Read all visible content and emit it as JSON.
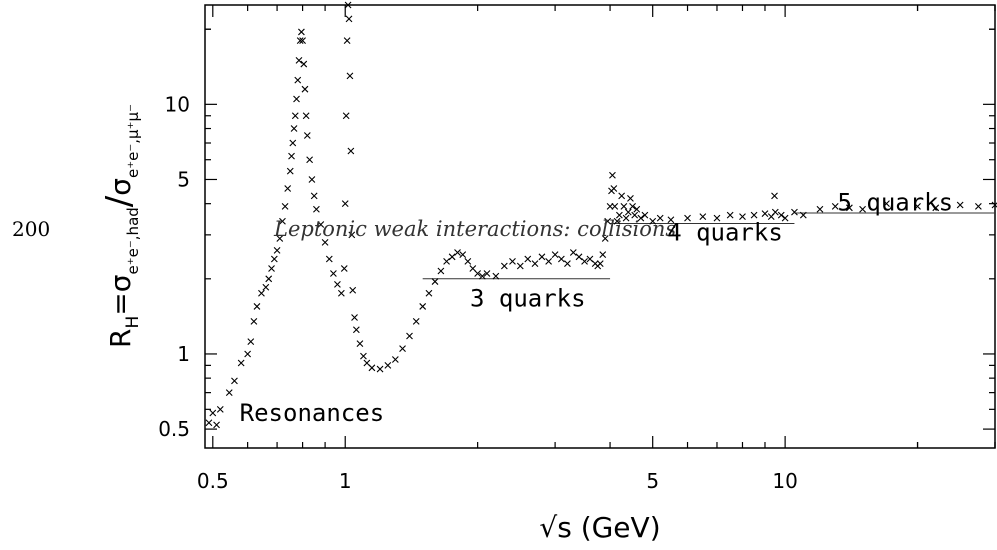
{
  "page_number": "200",
  "chart_data": {
    "type": "scatter",
    "title": "",
    "xlabel": "√s (GeV)",
    "ylabel": "R_H=σ e+e-,had / σ e+e-,μ+μ-",
    "ylabel_parts": {
      "main": "R",
      "sub": "H",
      "eq": "=",
      "sigma": "σ",
      "num_sub": "e⁺e⁻,had",
      "slash": "/",
      "den_sub": "e⁺e⁻,μ⁺μ⁻"
    },
    "x_scale": "log",
    "y_scale": "log",
    "xlim": [
      0.48,
      30
    ],
    "ylim": [
      0.42,
      25
    ],
    "x_ticks": [
      {
        "value": 0.5,
        "label": "0.5"
      },
      {
        "value": 1,
        "label": "1"
      },
      {
        "value": 5,
        "label": "5"
      },
      {
        "value": 10,
        "label": "10"
      }
    ],
    "y_ticks": [
      {
        "value": 0.5,
        "label": "0.5"
      },
      {
        "value": 1,
        "label": "1"
      },
      {
        "value": 5,
        "label": "5"
      },
      {
        "value": 10,
        "label": "10"
      }
    ],
    "grid": false,
    "marker": "×",
    "annotations": [
      {
        "text": "Resonances",
        "x": 0.84,
        "y": 0.54
      },
      {
        "text": "3 quarks",
        "x": 2.6,
        "y": 1.55
      },
      {
        "text": "4 quarks",
        "x": 7.3,
        "y": 2.85
      },
      {
        "text": "5 quarks",
        "x": 17.8,
        "y": 3.75
      }
    ],
    "overlay_text": "Leptonic weak interactions: collisions",
    "reference_lines": [
      {
        "name": "3 quarks",
        "value": 2.0,
        "x_range": [
          1.5,
          4.0
        ]
      },
      {
        "name": "4 quarks",
        "value": 3.33,
        "x_range": [
          4.0,
          10.5
        ]
      },
      {
        "name": "5 quarks",
        "value": 3.67,
        "x_range": [
          10.5,
          30
        ]
      }
    ],
    "series": [
      {
        "values": [
          [
            0.49,
            0.53
          ],
          [
            0.5,
            0.58
          ],
          [
            0.51,
            0.52
          ],
          [
            0.52,
            0.6
          ],
          [
            0.545,
            0.7
          ],
          [
            0.56,
            0.78
          ],
          [
            0.58,
            0.92
          ],
          [
            0.6,
            1.0
          ],
          [
            0.61,
            1.12
          ],
          [
            0.62,
            1.35
          ],
          [
            0.63,
            1.55
          ],
          [
            0.645,
            1.75
          ],
          [
            0.66,
            1.85
          ],
          [
            0.67,
            2.0
          ],
          [
            0.68,
            2.2
          ],
          [
            0.69,
            2.4
          ],
          [
            0.7,
            2.6
          ],
          [
            0.71,
            2.9
          ],
          [
            0.72,
            3.4
          ],
          [
            0.73,
            3.9
          ],
          [
            0.74,
            4.6
          ],
          [
            0.75,
            5.4
          ],
          [
            0.755,
            6.2
          ],
          [
            0.76,
            7.0
          ],
          [
            0.765,
            8.0
          ],
          [
            0.77,
            9.0
          ],
          [
            0.775,
            10.5
          ],
          [
            0.78,
            12.5
          ],
          [
            0.785,
            15.0
          ],
          [
            0.79,
            18.0
          ],
          [
            0.795,
            19.5
          ],
          [
            0.8,
            18.0
          ],
          [
            0.805,
            14.5
          ],
          [
            0.81,
            11.5
          ],
          [
            0.815,
            9.0
          ],
          [
            0.82,
            7.5
          ],
          [
            0.83,
            6.0
          ],
          [
            0.84,
            5.0
          ],
          [
            0.85,
            4.3
          ],
          [
            0.86,
            3.8
          ],
          [
            0.88,
            3.3
          ],
          [
            0.9,
            2.8
          ],
          [
            0.92,
            2.4
          ],
          [
            0.94,
            2.1
          ],
          [
            0.96,
            1.9
          ],
          [
            0.98,
            1.75
          ],
          [
            0.995,
            2.2
          ],
          [
            1.0,
            4.0
          ],
          [
            1.005,
            9.0
          ],
          [
            1.01,
            18.0
          ],
          [
            1.015,
            26.0
          ],
          [
            1.02,
            22.0
          ],
          [
            1.025,
            13.0
          ],
          [
            1.03,
            6.5
          ],
          [
            1.035,
            3.0
          ],
          [
            1.04,
            1.8
          ],
          [
            1.05,
            1.4
          ],
          [
            1.06,
            1.25
          ],
          [
            1.08,
            1.1
          ],
          [
            1.1,
            0.98
          ],
          [
            1.12,
            0.92
          ],
          [
            1.15,
            0.88
          ],
          [
            1.2,
            0.87
          ],
          [
            1.25,
            0.9
          ],
          [
            1.3,
            0.95
          ],
          [
            1.35,
            1.05
          ],
          [
            1.4,
            1.18
          ],
          [
            1.45,
            1.35
          ],
          [
            1.5,
            1.55
          ],
          [
            1.55,
            1.75
          ],
          [
            1.6,
            1.95
          ],
          [
            1.65,
            2.15
          ],
          [
            1.7,
            2.35
          ],
          [
            1.75,
            2.45
          ],
          [
            1.8,
            2.55
          ],
          [
            1.85,
            2.5
          ],
          [
            1.9,
            2.35
          ],
          [
            1.95,
            2.2
          ],
          [
            2.0,
            2.1
          ],
          [
            2.05,
            2.05
          ],
          [
            2.1,
            2.1
          ],
          [
            2.2,
            2.05
          ],
          [
            2.3,
            2.25
          ],
          [
            2.4,
            2.35
          ],
          [
            2.5,
            2.25
          ],
          [
            2.6,
            2.4
          ],
          [
            2.7,
            2.3
          ],
          [
            2.8,
            2.45
          ],
          [
            2.9,
            2.35
          ],
          [
            3.0,
            2.5
          ],
          [
            3.1,
            2.4
          ],
          [
            3.2,
            2.3
          ],
          [
            3.3,
            2.55
          ],
          [
            3.4,
            2.45
          ],
          [
            3.5,
            2.35
          ],
          [
            3.6,
            2.4
          ],
          [
            3.7,
            2.3
          ],
          [
            3.75,
            2.25
          ],
          [
            3.8,
            2.3
          ],
          [
            3.85,
            2.5
          ],
          [
            3.9,
            2.9
          ],
          [
            3.95,
            3.4
          ],
          [
            4.0,
            3.9
          ],
          [
            4.03,
            4.5
          ],
          [
            4.05,
            5.2
          ],
          [
            4.08,
            4.6
          ],
          [
            4.1,
            3.9
          ],
          [
            4.15,
            3.4
          ],
          [
            4.2,
            3.6
          ],
          [
            4.25,
            4.3
          ],
          [
            4.3,
            3.9
          ],
          [
            4.35,
            3.5
          ],
          [
            4.4,
            3.7
          ],
          [
            4.45,
            4.2
          ],
          [
            4.5,
            3.9
          ],
          [
            4.55,
            3.6
          ],
          [
            4.6,
            3.8
          ],
          [
            4.7,
            3.5
          ],
          [
            4.8,
            3.6
          ],
          [
            5.0,
            3.4
          ],
          [
            5.2,
            3.5
          ],
          [
            5.5,
            3.45
          ],
          [
            6.0,
            3.5
          ],
          [
            6.5,
            3.55
          ],
          [
            7.0,
            3.5
          ],
          [
            7.5,
            3.6
          ],
          [
            8.0,
            3.55
          ],
          [
            8.5,
            3.6
          ],
          [
            9.0,
            3.65
          ],
          [
            9.3,
            3.55
          ],
          [
            9.46,
            4.3
          ],
          [
            9.5,
            3.7
          ],
          [
            9.8,
            3.6
          ],
          [
            10.0,
            3.5
          ],
          [
            10.5,
            3.7
          ],
          [
            11.0,
            3.6
          ],
          [
            12.0,
            3.8
          ],
          [
            13.0,
            3.9
          ],
          [
            14.0,
            3.85
          ],
          [
            15.0,
            3.8
          ],
          [
            17.0,
            4.0
          ],
          [
            20.0,
            3.9
          ],
          [
            22.0,
            3.85
          ],
          [
            25.0,
            3.95
          ],
          [
            27.5,
            3.9
          ],
          [
            30.0,
            3.95
          ]
        ]
      }
    ]
  }
}
